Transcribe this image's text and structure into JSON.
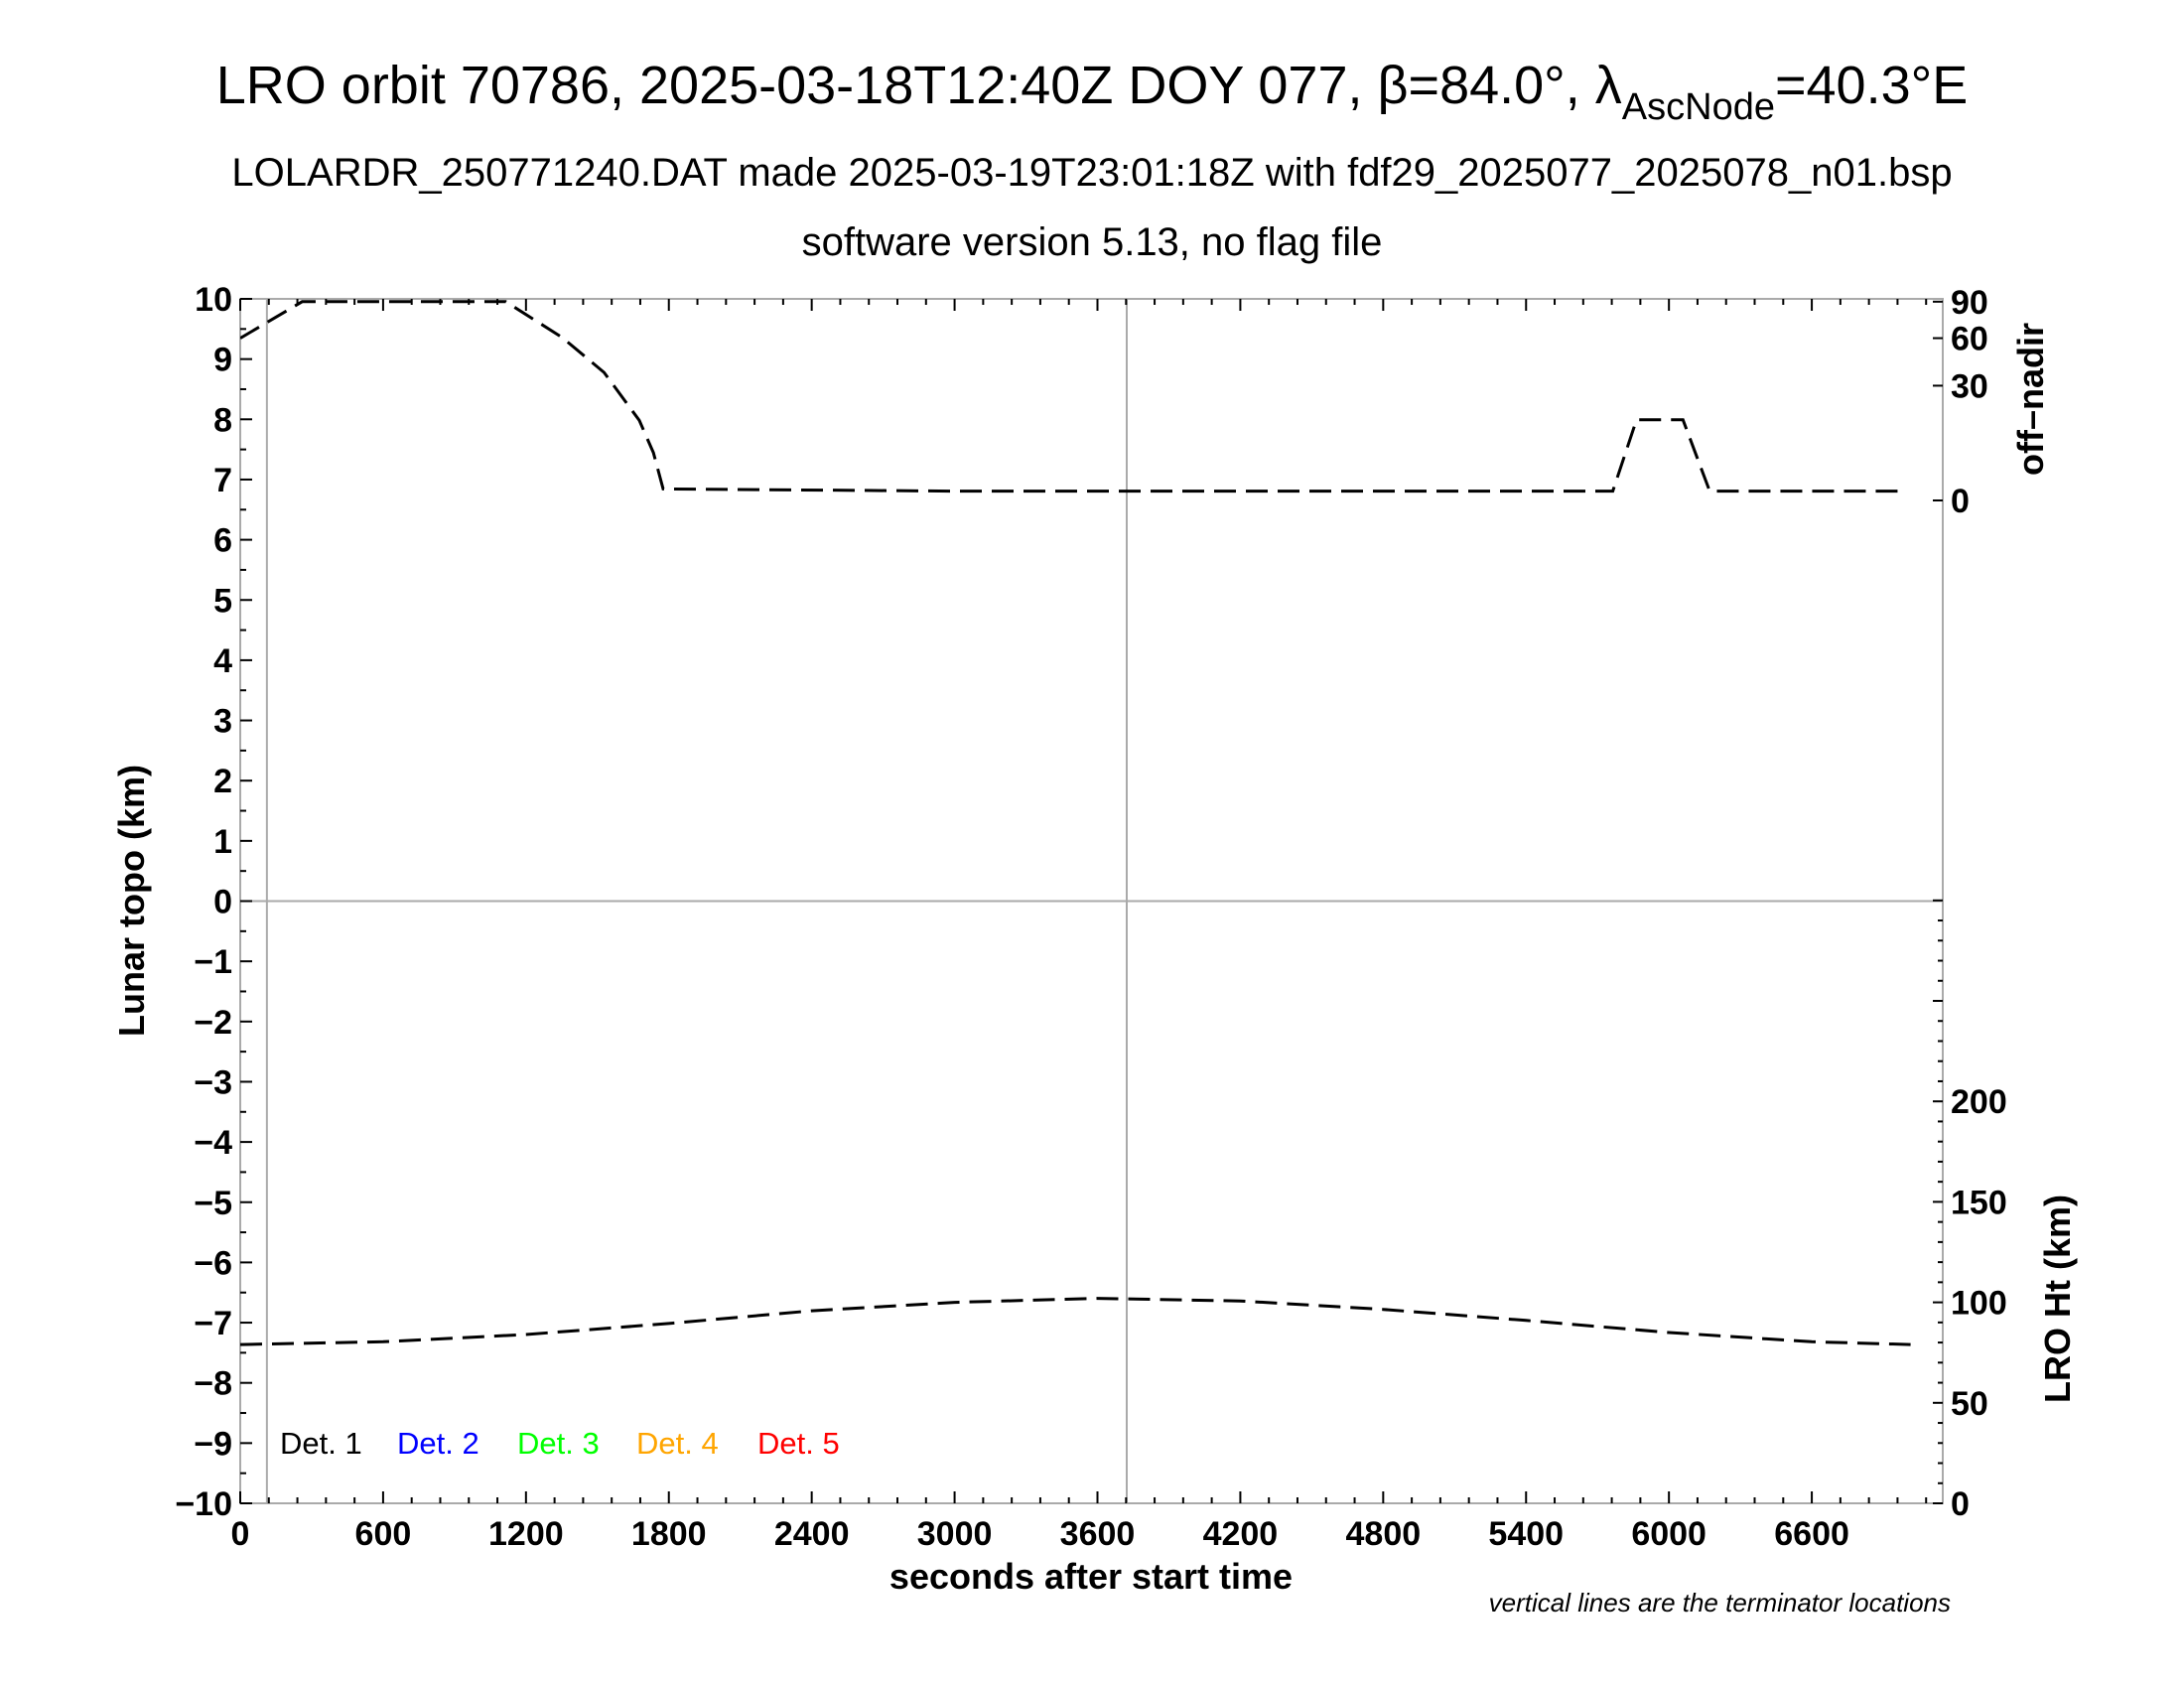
{
  "chart_data": {
    "type": "line",
    "title": {
      "main": "LRO orbit 70786, 2025-03-18T12:40Z DOY 077, β=84.0°, λ",
      "sub": "AscNode",
      "tail": "=40.3°E"
    },
    "subtitle": "LOLARDR_250771240.DAT made 2025-03-19T23:01:18Z with fdf29_2025077_2025078_n01.bsp",
    "subtitle2": "software version 5.13, no flag file",
    "xlabel": "seconds after start time",
    "ylabel": "Lunar topo (km)",
    "y2label_upper": "off–nadir",
    "y2label_lower": "LRO Ht (km)",
    "note": "vertical lines are the terminator locations",
    "xlim": [
      0,
      7150
    ],
    "ylim": [
      -10,
      10
    ],
    "xticks": [
      0,
      600,
      1200,
      1800,
      2400,
      3000,
      3600,
      4200,
      4800,
      5400,
      6000,
      6600
    ],
    "yticks": [
      10,
      9,
      8,
      7,
      6,
      5,
      4,
      3,
      2,
      1,
      0,
      -1,
      -2,
      -3,
      -4,
      -5,
      -6,
      -7,
      -8,
      -9,
      -10
    ],
    "offnadir_axis": {
      "scale": "sqrt",
      "range": [
        0,
        90
      ],
      "ticks": [
        0,
        30,
        60,
        90
      ]
    },
    "height_axis": {
      "range": [
        0,
        300
      ],
      "ticks": [
        0,
        50,
        100,
        150,
        200
      ]
    },
    "terminators": [
      112,
      3723
    ],
    "legend": [
      {
        "label": "Det. 1",
        "color": "#000000"
      },
      {
        "label": "Det. 2",
        "color": "#0000ff"
      },
      {
        "label": "Det. 3",
        "color": "#00ff00"
      },
      {
        "label": "Det. 4",
        "color": "#ffa500"
      },
      {
        "label": "Det. 5",
        "color": "#ff0000"
      }
    ],
    "legend_placement": "bottom-left",
    "series": [
      {
        "axis": "off-nadir (deg)",
        "style": "dashed",
        "x": [
          0,
          260,
          1115,
          1351,
          1528,
          1676,
          1735,
          1776,
          3000,
          5764,
          5864,
          6059,
          6171,
          6985
        ],
        "y": [
          60,
          90,
          90,
          60.6,
          37.3,
          14.6,
          5.2,
          0.3,
          0.2,
          0.2,
          14.8,
          14.8,
          0.2,
          0.2
        ]
      },
      {
        "axis": "LRO Ht (km)",
        "style": "dashed",
        "x": [
          0,
          600,
          1200,
          1800,
          2400,
          3000,
          3600,
          4200,
          4800,
          5400,
          6000,
          6600,
          7015
        ],
        "y": [
          79,
          80.4,
          84,
          89.5,
          95.8,
          100,
          102,
          100.7,
          96.5,
          91,
          85,
          80.4,
          79
        ]
      }
    ]
  }
}
